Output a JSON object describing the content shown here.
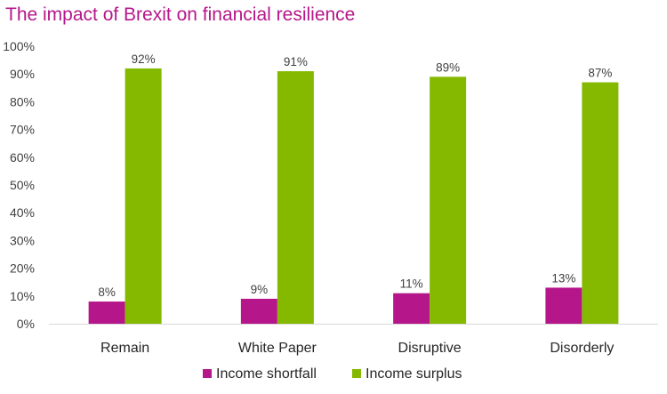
{
  "chart_data": {
    "type": "bar",
    "title": "The impact of Brexit on financial resilience",
    "categories": [
      "Remain",
      "White Paper",
      "Disruptive",
      "Disorderly"
    ],
    "series": [
      {
        "name": "Income shortfall",
        "color": "#b5178a",
        "values": [
          8,
          9,
          11,
          13
        ],
        "labels": [
          "8%",
          "9%",
          "11%",
          "13%"
        ]
      },
      {
        "name": "Income surplus",
        "color": "#84b900",
        "values": [
          92,
          91,
          89,
          87
        ],
        "labels": [
          "92%",
          "91%",
          "89%",
          "87%"
        ]
      }
    ],
    "ylim": [
      0,
      100
    ],
    "yticks": [
      "0%",
      "10%",
      "20%",
      "30%",
      "40%",
      "50%",
      "60%",
      "70%",
      "80%",
      "90%",
      "100%"
    ],
    "xlabel": "",
    "ylabel": "",
    "grid": false,
    "legend_position": "bottom"
  }
}
